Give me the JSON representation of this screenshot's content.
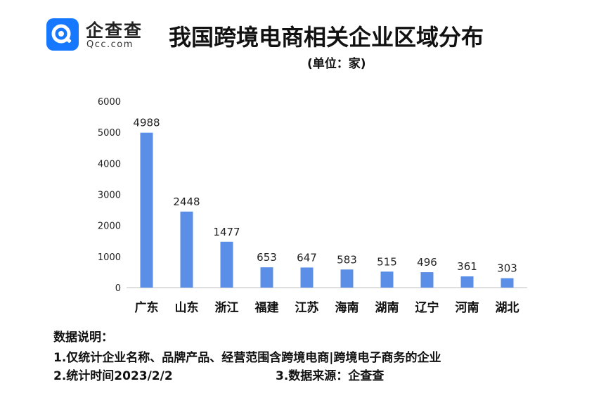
{
  "brand": {
    "name": "企查查",
    "domain": "Qcc.com",
    "accent_color": "#1677ff"
  },
  "header": {
    "title": "我国跨境电商相关企业区域分布",
    "unit": "(单位：家)"
  },
  "chart_data": {
    "type": "bar",
    "title": "我国跨境电商相关企业区域分布",
    "subtitle": "(单位：家)",
    "categories": [
      "广东",
      "山东",
      "浙江",
      "福建",
      "江苏",
      "海南",
      "湖南",
      "辽宁",
      "河南",
      "湖北"
    ],
    "values": [
      4988,
      2448,
      1477,
      653,
      647,
      583,
      515,
      496,
      361,
      303
    ],
    "ylim": [
      0,
      6000
    ],
    "yticks": [
      0,
      1000,
      2000,
      3000,
      4000,
      5000,
      6000
    ],
    "bar_color": "#5b8ee6",
    "grid": false,
    "data_labels": true
  },
  "notes": {
    "heading": "数据说明：",
    "line1": "1.仅统计企业名称、品牌产品、经营范围含跨境电商|跨境电子商务的企业",
    "line2": "2.统计时间2023/2/2",
    "line3": "3.数据来源：企查查"
  }
}
